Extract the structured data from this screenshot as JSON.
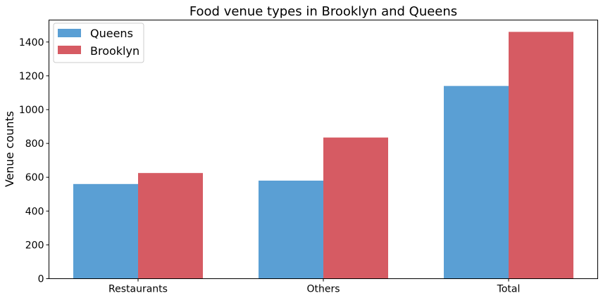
{
  "chart_data": {
    "type": "bar",
    "title": "Food venue types in Brooklyn and Queens",
    "xlabel": "",
    "ylabel": "Venue counts",
    "categories": [
      "Restaurants",
      "Others",
      "Total"
    ],
    "series": [
      {
        "name": "Queens",
        "values": [
          560,
          580,
          1140
        ],
        "color": "#5a9fd4"
      },
      {
        "name": "Brooklyn",
        "values": [
          625,
          835,
          1460
        ],
        "color": "#d65b63"
      }
    ],
    "ylim": [
      0,
      1530
    ],
    "yticks": [
      0,
      200,
      400,
      600,
      800,
      1000,
      1200,
      1400
    ],
    "grid": false,
    "legend_position": "top-left"
  }
}
